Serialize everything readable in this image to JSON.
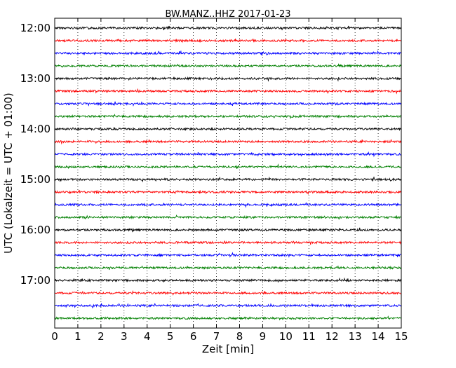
{
  "chart_data": {
    "type": "line",
    "title": "BW.MANZ..HHZ 2017-01-23",
    "xlabel": "Zeit  [min]",
    "ylabel": "UTC (Lokalzeit = UTC + 01:00)",
    "xlim": [
      0,
      15
    ],
    "x_ticks": [
      "0",
      "1",
      "2",
      "3",
      "4",
      "5",
      "6",
      "7",
      "8",
      "9",
      "10",
      "11",
      "12",
      "13",
      "14",
      "15"
    ],
    "y_ticks": [
      "12:00",
      "13:00",
      "14:00",
      "15:00",
      "16:00",
      "17:00"
    ],
    "grid": "vertical dotted at each minute",
    "colors": [
      "#000000",
      "#ff0000",
      "#0000ff",
      "#008000"
    ],
    "series": [
      {
        "start": "12:00",
        "color": "#000000"
      },
      {
        "start": "12:15",
        "color": "#ff0000"
      },
      {
        "start": "12:30",
        "color": "#0000ff"
      },
      {
        "start": "12:45",
        "color": "#008000"
      },
      {
        "start": "13:00",
        "color": "#000000"
      },
      {
        "start": "13:15",
        "color": "#ff0000"
      },
      {
        "start": "13:30",
        "color": "#0000ff"
      },
      {
        "start": "13:45",
        "color": "#008000"
      },
      {
        "start": "14:00",
        "color": "#000000"
      },
      {
        "start": "14:15",
        "color": "#ff0000"
      },
      {
        "start": "14:30",
        "color": "#0000ff"
      },
      {
        "start": "14:45",
        "color": "#008000"
      },
      {
        "start": "15:00",
        "color": "#000000"
      },
      {
        "start": "15:15",
        "color": "#ff0000"
      },
      {
        "start": "15:30",
        "color": "#0000ff"
      },
      {
        "start": "15:45",
        "color": "#008000"
      },
      {
        "start": "16:00",
        "color": "#000000"
      },
      {
        "start": "16:15",
        "color": "#ff0000"
      },
      {
        "start": "16:30",
        "color": "#0000ff"
      },
      {
        "start": "16:45",
        "color": "#008000"
      },
      {
        "start": "17:00",
        "color": "#000000"
      },
      {
        "start": "17:15",
        "color": "#ff0000"
      },
      {
        "start": "17:30",
        "color": "#0000ff"
      },
      {
        "start": "17:45",
        "color": "#008000"
      }
    ]
  }
}
